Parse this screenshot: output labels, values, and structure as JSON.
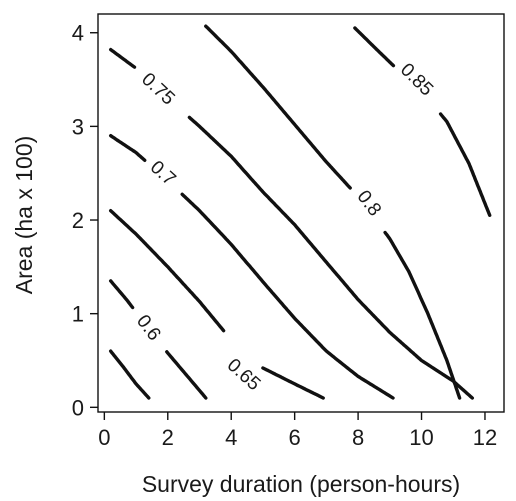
{
  "chart_data": {
    "type": "contour",
    "xlabel": "Survey duration (person-hours)",
    "ylabel": "Area (ha x 100)",
    "xlim": [
      -0.2,
      12.6
    ],
    "ylim": [
      -0.05,
      4.2
    ],
    "xticks": [
      0,
      2,
      4,
      6,
      8,
      10,
      12
    ],
    "yticks": [
      0,
      1,
      2,
      3,
      4
    ],
    "grid": false,
    "line_color": "#111111",
    "contours": [
      {
        "level": "0.55",
        "show_label": false,
        "points": [
          [
            0.2,
            0.6
          ],
          [
            0.6,
            0.43
          ],
          [
            1.0,
            0.25
          ],
          [
            1.4,
            0.1
          ]
        ],
        "gaps": []
      },
      {
        "level": "0.6",
        "show_label": true,
        "label_at": [
          1.4,
          0.85
        ],
        "points": [
          [
            0.2,
            1.35
          ],
          [
            0.7,
            1.15
          ],
          [
            1.2,
            0.93
          ],
          [
            1.7,
            0.7
          ],
          [
            2.2,
            0.5
          ],
          [
            2.7,
            0.3
          ],
          [
            3.2,
            0.1
          ]
        ],
        "gaps": [
          [
            0.9,
            1.95
          ]
        ]
      },
      {
        "level": "0.65",
        "show_label": true,
        "label_at": [
          4.4,
          0.35
        ],
        "points": [
          [
            0.2,
            2.1
          ],
          [
            1.0,
            1.85
          ],
          [
            2.0,
            1.5
          ],
          [
            3.0,
            1.13
          ],
          [
            4.0,
            0.72
          ],
          [
            5.0,
            0.42
          ],
          [
            6.0,
            0.25
          ],
          [
            6.9,
            0.1
          ]
        ],
        "gaps": [
          [
            3.8,
            5.0
          ]
        ]
      },
      {
        "level": "0.7",
        "show_label": true,
        "label_at": [
          1.85,
          2.5
        ],
        "points": [
          [
            0.2,
            2.9
          ],
          [
            1.0,
            2.72
          ],
          [
            2.0,
            2.42
          ],
          [
            3.0,
            2.1
          ],
          [
            4.0,
            1.74
          ],
          [
            5.0,
            1.34
          ],
          [
            6.0,
            0.95
          ],
          [
            7.0,
            0.6
          ],
          [
            8.0,
            0.33
          ],
          [
            9.1,
            0.1
          ]
        ],
        "gaps": [
          [
            1.3,
            2.45
          ]
        ]
      },
      {
        "level": "0.75",
        "show_label": true,
        "label_at": [
          1.7,
          3.4
        ],
        "points": [
          [
            0.2,
            3.82
          ],
          [
            1.0,
            3.62
          ],
          [
            2.0,
            3.3
          ],
          [
            3.0,
            3.0
          ],
          [
            4.0,
            2.68
          ],
          [
            5.0,
            2.3
          ],
          [
            6.0,
            1.95
          ],
          [
            7.0,
            1.55
          ],
          [
            8.0,
            1.15
          ],
          [
            9.0,
            0.8
          ],
          [
            10.0,
            0.5
          ],
          [
            11.0,
            0.28
          ],
          [
            11.6,
            0.1
          ]
        ],
        "gaps": [
          [
            0.95,
            2.65
          ]
        ]
      },
      {
        "level": "0.8",
        "show_label": true,
        "label_at": [
          8.35,
          2.18
        ],
        "points": [
          [
            3.2,
            4.07
          ],
          [
            4.0,
            3.8
          ],
          [
            5.0,
            3.42
          ],
          [
            6.0,
            3.02
          ],
          [
            7.0,
            2.62
          ],
          [
            8.0,
            2.25
          ],
          [
            9.0,
            1.8
          ],
          [
            9.6,
            1.45
          ],
          [
            10.2,
            1.0
          ],
          [
            10.8,
            0.5
          ],
          [
            11.2,
            0.1
          ]
        ],
        "gaps": [
          [
            7.75,
            8.85
          ]
        ]
      },
      {
        "level": "0.85",
        "show_label": true,
        "label_at": [
          9.85,
          3.5
        ],
        "points": [
          [
            7.9,
            4.05
          ],
          [
            8.5,
            3.85
          ],
          [
            9.2,
            3.62
          ],
          [
            10.0,
            3.38
          ],
          [
            10.8,
            3.05
          ],
          [
            11.5,
            2.6
          ],
          [
            12.15,
            2.05
          ]
        ],
        "gaps": [
          [
            9.15,
            10.6
          ]
        ]
      }
    ]
  }
}
